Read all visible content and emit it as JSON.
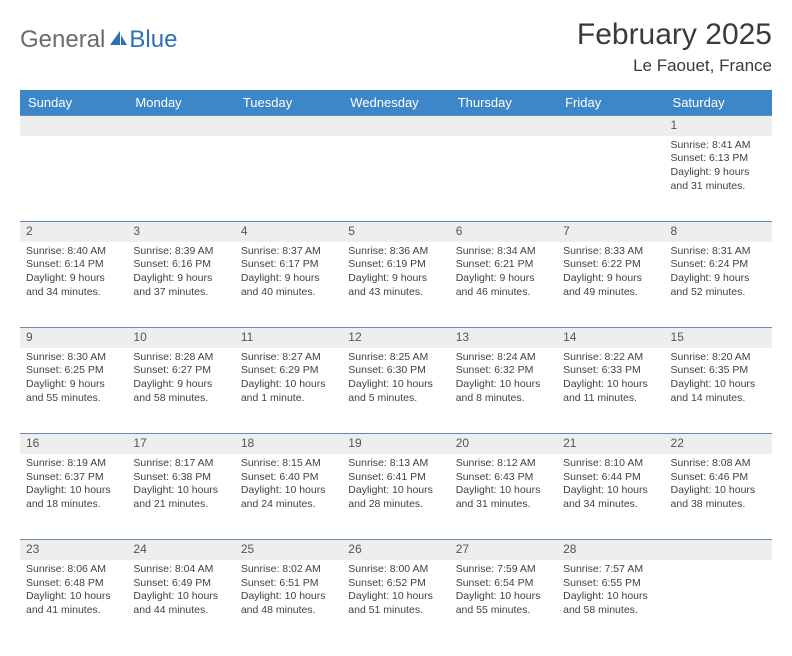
{
  "logo": {
    "text_general": "General",
    "text_blue": "Blue"
  },
  "title": "February 2025",
  "location": "Le Faouet, France",
  "colors": {
    "header_bg": "#3d87c9",
    "header_text": "#ffffff",
    "daynum_bg": "#eeeeee",
    "row_border": "#6a8bb0",
    "body_text": "#424242",
    "logo_gray": "#6b6b6b",
    "logo_blue": "#2d6fb8"
  },
  "weekdays": [
    "Sunday",
    "Monday",
    "Tuesday",
    "Wednesday",
    "Thursday",
    "Friday",
    "Saturday"
  ],
  "weeks": [
    {
      "nums": [
        "",
        "",
        "",
        "",
        "",
        "",
        "1"
      ],
      "cells": [
        null,
        null,
        null,
        null,
        null,
        null,
        {
          "sunrise": "Sunrise: 8:41 AM",
          "sunset": "Sunset: 6:13 PM",
          "day1": "Daylight: 9 hours",
          "day2": "and 31 minutes."
        }
      ]
    },
    {
      "nums": [
        "2",
        "3",
        "4",
        "5",
        "6",
        "7",
        "8"
      ],
      "cells": [
        {
          "sunrise": "Sunrise: 8:40 AM",
          "sunset": "Sunset: 6:14 PM",
          "day1": "Daylight: 9 hours",
          "day2": "and 34 minutes."
        },
        {
          "sunrise": "Sunrise: 8:39 AM",
          "sunset": "Sunset: 6:16 PM",
          "day1": "Daylight: 9 hours",
          "day2": "and 37 minutes."
        },
        {
          "sunrise": "Sunrise: 8:37 AM",
          "sunset": "Sunset: 6:17 PM",
          "day1": "Daylight: 9 hours",
          "day2": "and 40 minutes."
        },
        {
          "sunrise": "Sunrise: 8:36 AM",
          "sunset": "Sunset: 6:19 PM",
          "day1": "Daylight: 9 hours",
          "day2": "and 43 minutes."
        },
        {
          "sunrise": "Sunrise: 8:34 AM",
          "sunset": "Sunset: 6:21 PM",
          "day1": "Daylight: 9 hours",
          "day2": "and 46 minutes."
        },
        {
          "sunrise": "Sunrise: 8:33 AM",
          "sunset": "Sunset: 6:22 PM",
          "day1": "Daylight: 9 hours",
          "day2": "and 49 minutes."
        },
        {
          "sunrise": "Sunrise: 8:31 AM",
          "sunset": "Sunset: 6:24 PM",
          "day1": "Daylight: 9 hours",
          "day2": "and 52 minutes."
        }
      ]
    },
    {
      "nums": [
        "9",
        "10",
        "11",
        "12",
        "13",
        "14",
        "15"
      ],
      "cells": [
        {
          "sunrise": "Sunrise: 8:30 AM",
          "sunset": "Sunset: 6:25 PM",
          "day1": "Daylight: 9 hours",
          "day2": "and 55 minutes."
        },
        {
          "sunrise": "Sunrise: 8:28 AM",
          "sunset": "Sunset: 6:27 PM",
          "day1": "Daylight: 9 hours",
          "day2": "and 58 minutes."
        },
        {
          "sunrise": "Sunrise: 8:27 AM",
          "sunset": "Sunset: 6:29 PM",
          "day1": "Daylight: 10 hours",
          "day2": "and 1 minute."
        },
        {
          "sunrise": "Sunrise: 8:25 AM",
          "sunset": "Sunset: 6:30 PM",
          "day1": "Daylight: 10 hours",
          "day2": "and 5 minutes."
        },
        {
          "sunrise": "Sunrise: 8:24 AM",
          "sunset": "Sunset: 6:32 PM",
          "day1": "Daylight: 10 hours",
          "day2": "and 8 minutes."
        },
        {
          "sunrise": "Sunrise: 8:22 AM",
          "sunset": "Sunset: 6:33 PM",
          "day1": "Daylight: 10 hours",
          "day2": "and 11 minutes."
        },
        {
          "sunrise": "Sunrise: 8:20 AM",
          "sunset": "Sunset: 6:35 PM",
          "day1": "Daylight: 10 hours",
          "day2": "and 14 minutes."
        }
      ]
    },
    {
      "nums": [
        "16",
        "17",
        "18",
        "19",
        "20",
        "21",
        "22"
      ],
      "cells": [
        {
          "sunrise": "Sunrise: 8:19 AM",
          "sunset": "Sunset: 6:37 PM",
          "day1": "Daylight: 10 hours",
          "day2": "and 18 minutes."
        },
        {
          "sunrise": "Sunrise: 8:17 AM",
          "sunset": "Sunset: 6:38 PM",
          "day1": "Daylight: 10 hours",
          "day2": "and 21 minutes."
        },
        {
          "sunrise": "Sunrise: 8:15 AM",
          "sunset": "Sunset: 6:40 PM",
          "day1": "Daylight: 10 hours",
          "day2": "and 24 minutes."
        },
        {
          "sunrise": "Sunrise: 8:13 AM",
          "sunset": "Sunset: 6:41 PM",
          "day1": "Daylight: 10 hours",
          "day2": "and 28 minutes."
        },
        {
          "sunrise": "Sunrise: 8:12 AM",
          "sunset": "Sunset: 6:43 PM",
          "day1": "Daylight: 10 hours",
          "day2": "and 31 minutes."
        },
        {
          "sunrise": "Sunrise: 8:10 AM",
          "sunset": "Sunset: 6:44 PM",
          "day1": "Daylight: 10 hours",
          "day2": "and 34 minutes."
        },
        {
          "sunrise": "Sunrise: 8:08 AM",
          "sunset": "Sunset: 6:46 PM",
          "day1": "Daylight: 10 hours",
          "day2": "and 38 minutes."
        }
      ]
    },
    {
      "nums": [
        "23",
        "24",
        "25",
        "26",
        "27",
        "28",
        ""
      ],
      "cells": [
        {
          "sunrise": "Sunrise: 8:06 AM",
          "sunset": "Sunset: 6:48 PM",
          "day1": "Daylight: 10 hours",
          "day2": "and 41 minutes."
        },
        {
          "sunrise": "Sunrise: 8:04 AM",
          "sunset": "Sunset: 6:49 PM",
          "day1": "Daylight: 10 hours",
          "day2": "and 44 minutes."
        },
        {
          "sunrise": "Sunrise: 8:02 AM",
          "sunset": "Sunset: 6:51 PM",
          "day1": "Daylight: 10 hours",
          "day2": "and 48 minutes."
        },
        {
          "sunrise": "Sunrise: 8:00 AM",
          "sunset": "Sunset: 6:52 PM",
          "day1": "Daylight: 10 hours",
          "day2": "and 51 minutes."
        },
        {
          "sunrise": "Sunrise: 7:59 AM",
          "sunset": "Sunset: 6:54 PM",
          "day1": "Daylight: 10 hours",
          "day2": "and 55 minutes."
        },
        {
          "sunrise": "Sunrise: 7:57 AM",
          "sunset": "Sunset: 6:55 PM",
          "day1": "Daylight: 10 hours",
          "day2": "and 58 minutes."
        },
        null
      ]
    }
  ]
}
